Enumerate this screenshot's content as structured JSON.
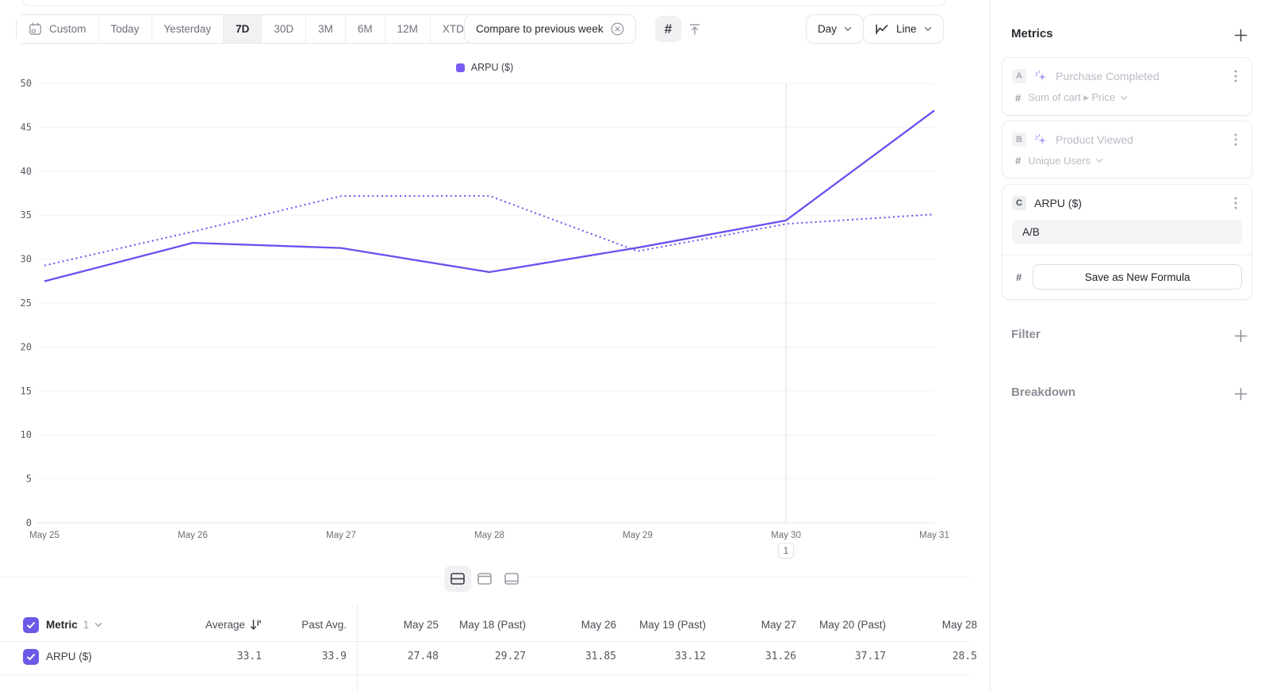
{
  "toolbar": {
    "date_ranges": [
      {
        "label": "Custom",
        "icon": "calendar-icon",
        "selected": false
      },
      {
        "label": "Today",
        "selected": false
      },
      {
        "label": "Yesterday",
        "selected": false
      },
      {
        "label": "7D",
        "selected": true
      },
      {
        "label": "30D",
        "selected": false
      },
      {
        "label": "3M",
        "selected": false
      },
      {
        "label": "6M",
        "selected": false
      },
      {
        "label": "12M",
        "selected": false
      },
      {
        "label": "XTD",
        "chevron": true,
        "selected": false
      }
    ],
    "compare_label": "Compare to previous week",
    "value_toggle": [
      {
        "icon": "hash-icon",
        "selected": true
      },
      {
        "icon": "threshold-arrow-icon",
        "selected": false
      }
    ],
    "granularity_label": "Day",
    "chart_type_label": "Line"
  },
  "chart_data": {
    "type": "line",
    "legend": [
      {
        "label": "ARPU ($)",
        "color": "#7b5bf5"
      }
    ],
    "x_labels": [
      "May 25",
      "May 26",
      "May 27",
      "May 28",
      "May 29",
      "May 30",
      "May 31"
    ],
    "ylim": [
      0,
      50
    ],
    "ytick_step": 5,
    "grid": "horizontal",
    "series": [
      {
        "name": "ARPU ($)",
        "style": "solid",
        "color": "#6d4ff0",
        "values": [
          27.48,
          31.85,
          31.26,
          28.52,
          31.3,
          34.4,
          46.9
        ]
      },
      {
        "name": "ARPU ($) — previous week",
        "style": "dotted",
        "color": "#6d4ff0",
        "values": [
          29.27,
          33.12,
          37.17,
          37.2,
          30.9,
          34.0,
          35.1
        ]
      }
    ],
    "annotation": {
      "label": "1",
      "x_index": 5
    }
  },
  "view_toggle": [
    {
      "icon": "layout-split-icon",
      "selected": true
    },
    {
      "icon": "layout-top-icon",
      "selected": false
    },
    {
      "icon": "layout-bottom-icon",
      "selected": false
    }
  ],
  "table": {
    "metric_label": "Metric",
    "metric_count": "1",
    "columns": [
      "Average",
      "Past Avg.",
      "May 25",
      "May 18 (Past)",
      "May 26",
      "May 19 (Past)",
      "May 27",
      "May 20 (Past)",
      "May 28"
    ],
    "rows": [
      {
        "label": "ARPU ($)",
        "checked": true,
        "values": [
          "33.1",
          "33.9",
          "27.48",
          "29.27",
          "31.85",
          "33.12",
          "31.26",
          "37.17",
          "28.5"
        ]
      }
    ]
  },
  "sidebar": {
    "metrics_title": "Metrics",
    "cards": [
      {
        "badge": "A",
        "title": "Purchase Completed",
        "icon": "event-spark-icon",
        "measure": "Sum of cart ▸ Price",
        "disabled": true
      },
      {
        "badge": "B",
        "title": "Product Viewed",
        "icon": "event-spark-icon",
        "measure": "Unique Users",
        "disabled": true
      },
      {
        "badge": "C",
        "title": "ARPU ($)",
        "formula": "A/B",
        "save_label": "Save as New Formula",
        "disabled": false
      }
    ],
    "filter_title": "Filter",
    "breakdown_title": "Breakdown"
  },
  "glyphs": {
    "hash": "#"
  },
  "colors": {
    "accent_purple": "#6d4ff0",
    "checkbox_purple": "#6c59e8",
    "selected_segment_bg": "#f2f2f4",
    "disabled_text": "#b9bcc4",
    "gridline": "#f2f2f4",
    "axis": "#e4e5e9"
  }
}
